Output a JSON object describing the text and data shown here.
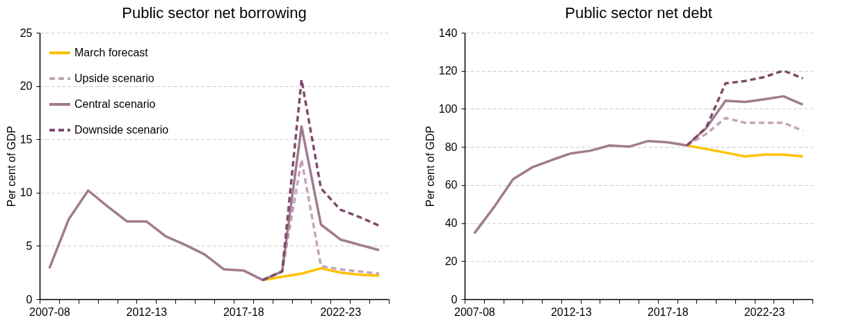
{
  "chart_data": [
    {
      "type": "line",
      "title": "Public sector net borrowing",
      "ylabel": "Per cent of GDP",
      "categories": [
        "2007-08",
        null,
        null,
        null,
        null,
        "2012-13",
        null,
        null,
        null,
        null,
        "2017-18",
        null,
        null,
        null,
        null,
        "2022-23",
        null,
        null
      ],
      "series": [
        {
          "name": "March forecast",
          "color": "#ffc000",
          "line_style": "solid",
          "values": [
            null,
            null,
            null,
            null,
            null,
            null,
            null,
            null,
            null,
            null,
            null,
            1.8,
            2.1,
            2.4,
            2.9,
            2.5,
            2.3,
            2.2
          ]
        },
        {
          "name": "Upside scenario",
          "color": "#c4a4b8",
          "line_style": "dashed",
          "values": [
            null,
            null,
            null,
            null,
            null,
            null,
            null,
            null,
            null,
            null,
            null,
            1.8,
            2.6,
            13.1,
            3.1,
            2.8,
            2.6,
            2.4
          ]
        },
        {
          "name": "Central scenario",
          "color": "#a07b8f",
          "line_style": "solid",
          "values": [
            2.9,
            7.5,
            10.2,
            8.7,
            7.3,
            7.3,
            5.9,
            5.1,
            4.2,
            2.8,
            2.7,
            1.8,
            2.6,
            16.2,
            7.0,
            5.6,
            5.1,
            4.6
          ]
        },
        {
          "name": "Downside scenario",
          "color": "#7f4a6a",
          "line_style": "dashed",
          "values": [
            null,
            null,
            null,
            null,
            null,
            null,
            null,
            null,
            null,
            null,
            null,
            1.8,
            2.6,
            20.6,
            10.4,
            8.4,
            7.7,
            6.9
          ]
        }
      ],
      "ylim": [
        0,
        25
      ],
      "yticks": [
        0,
        5,
        10,
        15,
        20,
        25
      ],
      "grid": "y",
      "legend": "top left"
    },
    {
      "type": "line",
      "title": "Public sector net debt",
      "ylabel": "Per cent of GDP",
      "categories": [
        "2007-08",
        null,
        null,
        null,
        null,
        "2012-13",
        null,
        null,
        null,
        null,
        "2017-18",
        null,
        null,
        null,
        null,
        "2022-23",
        null,
        null
      ],
      "series": [
        {
          "color": "#ffc000",
          "line_style": "solid",
          "values": [
            null,
            null,
            null,
            null,
            null,
            null,
            null,
            null,
            null,
            null,
            null,
            80.8,
            78.9,
            77.0,
            75.0,
            75.9,
            75.9,
            75.0
          ]
        },
        {
          "color": "#c4a4b8",
          "line_style": "dashed",
          "values": [
            null,
            null,
            null,
            null,
            null,
            null,
            null,
            null,
            null,
            null,
            null,
            80.8,
            86.8,
            95.2,
            92.7,
            92.7,
            92.7,
            88.5
          ]
        },
        {
          "color": "#a07b8f",
          "line_style": "solid",
          "values": [
            34.6,
            48.1,
            63.0,
            69.3,
            73.1,
            76.6,
            78.0,
            80.8,
            80.1,
            83.1,
            82.4,
            80.8,
            89.9,
            104.3,
            103.6,
            105.0,
            106.6,
            102.2
          ]
        },
        {
          "color": "#7f4a6a",
          "line_style": "dashed",
          "values": [
            null,
            null,
            null,
            null,
            null,
            null,
            null,
            null,
            null,
            null,
            null,
            80.8,
            90.1,
            113.4,
            114.6,
            116.7,
            120.1,
            116.0
          ]
        }
      ],
      "ylim": [
        0,
        140
      ],
      "yticks": [
        0,
        20,
        40,
        60,
        80,
        100,
        120,
        140
      ],
      "grid": "y"
    }
  ]
}
